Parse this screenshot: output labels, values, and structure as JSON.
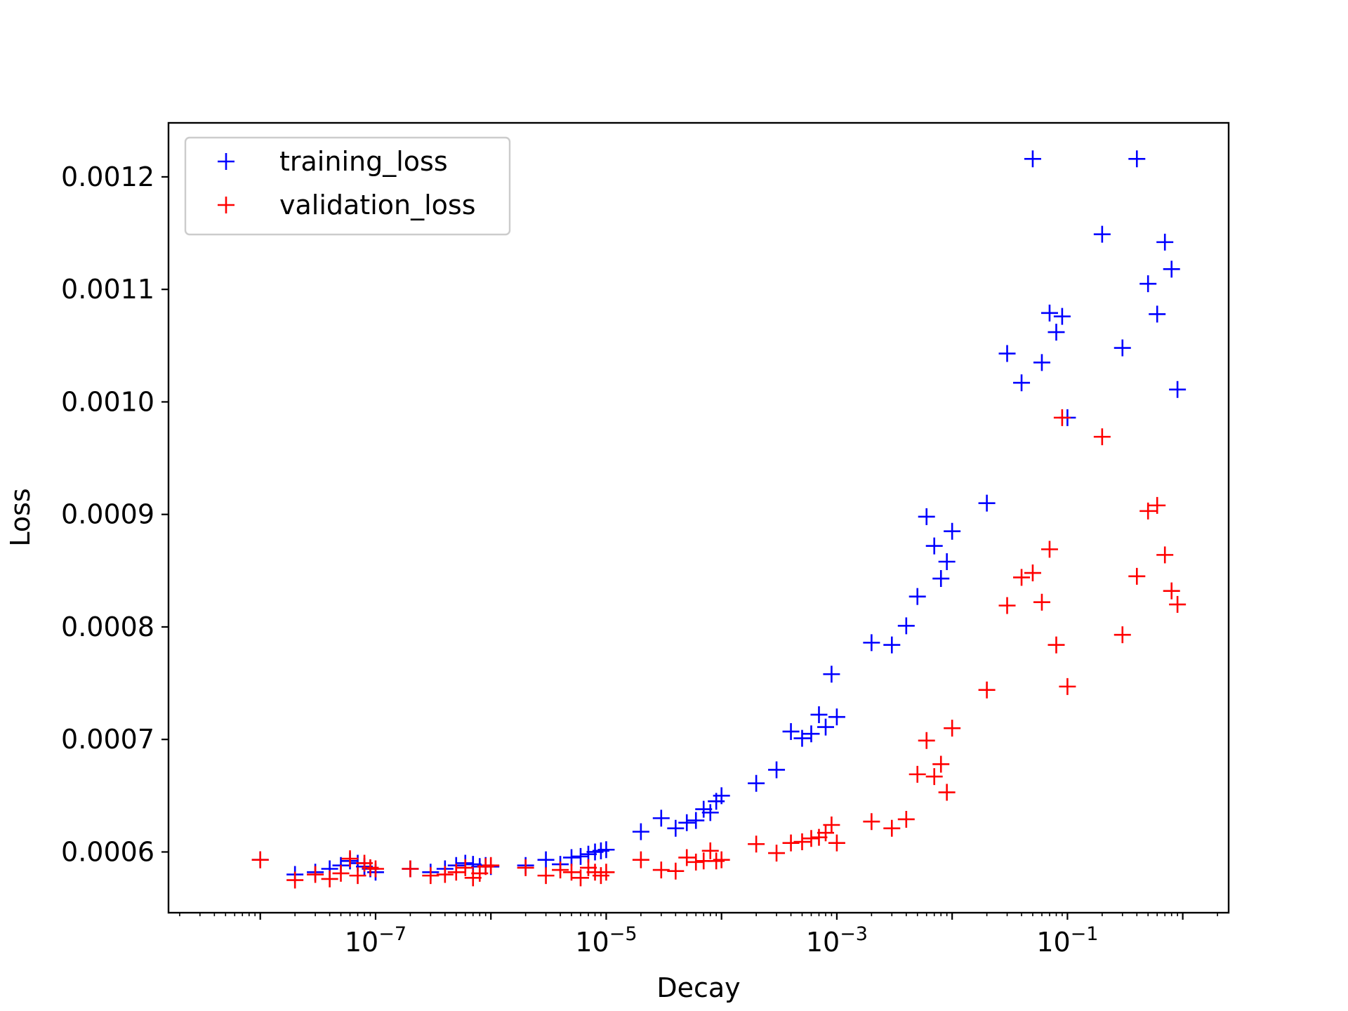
{
  "chart_data": {
    "type": "scatter",
    "title": "",
    "xlabel": "Decay",
    "ylabel": "Loss",
    "xscale": "log",
    "xlim": [
      1.6e-09,
      2.5
    ],
    "ylim": [
      0.000546,
      0.001248
    ],
    "grid": false,
    "legend": "top-left",
    "x_ticks": [
      {
        "value": 1e-07,
        "base": "10",
        "exp": "−7"
      },
      {
        "value": 1e-05,
        "base": "10",
        "exp": "−5"
      },
      {
        "value": 0.001,
        "base": "10",
        "exp": "−3"
      },
      {
        "value": 0.1,
        "base": "10",
        "exp": "−1"
      }
    ],
    "y_ticks": [
      {
        "value": 0.0006,
        "label": "0.0006"
      },
      {
        "value": 0.0007,
        "label": "0.0007"
      },
      {
        "value": 0.0008,
        "label": "0.0008"
      },
      {
        "value": 0.0009,
        "label": "0.0009"
      },
      {
        "value": 0.001,
        "label": "0.0010"
      },
      {
        "value": 0.0011,
        "label": "0.0011"
      },
      {
        "value": 0.0012,
        "label": "0.0012"
      }
    ],
    "series": [
      {
        "name": "training_loss",
        "color": "#0000ff",
        "marker": "plus",
        "points": [
          [
            1e-08,
            0.000593
          ],
          [
            2e-08,
            0.00058
          ],
          [
            3e-08,
            0.000582
          ],
          [
            4e-08,
            0.000585
          ],
          [
            5e-08,
            0.000588
          ],
          [
            6e-08,
            0.000592
          ],
          [
            7e-08,
            0.00059
          ],
          [
            8e-08,
            0.000587
          ],
          [
            9e-08,
            0.000585
          ],
          [
            1e-07,
            0.000582
          ],
          [
            2e-07,
            0.000585
          ],
          [
            3e-07,
            0.000582
          ],
          [
            4e-07,
            0.000585
          ],
          [
            5e-07,
            0.000588
          ],
          [
            6e-07,
            0.00059
          ],
          [
            7e-07,
            0.000589
          ],
          [
            8e-07,
            0.000587
          ],
          [
            9e-07,
            0.000588
          ],
          [
            1e-06,
            0.000587
          ],
          [
            2e-06,
            0.000588
          ],
          [
            3e-06,
            0.000593
          ],
          [
            4e-06,
            0.000589
          ],
          [
            5e-06,
            0.000595
          ],
          [
            6e-06,
            0.000596
          ],
          [
            7e-06,
            0.000598
          ],
          [
            8e-06,
            0.0006
          ],
          [
            9e-06,
            0.000601
          ],
          [
            1e-05,
            0.000602
          ],
          [
            2e-05,
            0.000618
          ],
          [
            3e-05,
            0.00063
          ],
          [
            4e-05,
            0.000621
          ],
          [
            5e-05,
            0.000626
          ],
          [
            6e-05,
            0.000628
          ],
          [
            7e-05,
            0.000638
          ],
          [
            8e-05,
            0.000635
          ],
          [
            9e-05,
            0.000645
          ],
          [
            0.0001,
            0.00065
          ],
          [
            0.0002,
            0.000661
          ],
          [
            0.0003,
            0.000673
          ],
          [
            0.0004,
            0.000707
          ],
          [
            0.0005,
            0.000701
          ],
          [
            0.0006,
            0.000705
          ],
          [
            0.0007,
            0.000722
          ],
          [
            0.0008,
            0.000711
          ],
          [
            0.0009,
            0.000758
          ],
          [
            0.001,
            0.00072
          ],
          [
            0.002,
            0.000786
          ],
          [
            0.003,
            0.000784
          ],
          [
            0.004,
            0.000801
          ],
          [
            0.005,
            0.000827
          ],
          [
            0.006,
            0.000898
          ],
          [
            0.007,
            0.000872
          ],
          [
            0.008,
            0.000843
          ],
          [
            0.009,
            0.000858
          ],
          [
            0.01,
            0.000885
          ],
          [
            0.02,
            0.00091
          ],
          [
            0.03,
            0.001043
          ],
          [
            0.04,
            0.001017
          ],
          [
            0.05,
            0.001216
          ],
          [
            0.06,
            0.001035
          ],
          [
            0.07,
            0.001079
          ],
          [
            0.08,
            0.001062
          ],
          [
            0.09,
            0.001076
          ],
          [
            0.1,
            0.000986
          ],
          [
            0.2,
            0.001149
          ],
          [
            0.3,
            0.001048
          ],
          [
            0.4,
            0.001216
          ],
          [
            0.5,
            0.001105
          ],
          [
            0.6,
            0.001078
          ],
          [
            0.7,
            0.001142
          ],
          [
            0.8,
            0.001118
          ],
          [
            0.9,
            0.001011
          ]
        ]
      },
      {
        "name": "validation_loss",
        "color": "#ff0000",
        "marker": "plus",
        "points": [
          [
            1e-08,
            0.000593
          ],
          [
            2e-08,
            0.000575
          ],
          [
            3e-08,
            0.00058
          ],
          [
            4e-08,
            0.000576
          ],
          [
            5e-08,
            0.000581
          ],
          [
            6e-08,
            0.000594
          ],
          [
            7e-08,
            0.000579
          ],
          [
            8e-08,
            0.00059
          ],
          [
            9e-08,
            0.000586
          ],
          [
            1e-07,
            0.000585
          ],
          [
            2e-07,
            0.000585
          ],
          [
            3e-07,
            0.000579
          ],
          [
            4e-07,
            0.00058
          ],
          [
            5e-07,
            0.000582
          ],
          [
            6e-07,
            0.000586
          ],
          [
            7e-07,
            0.000577
          ],
          [
            8e-07,
            0.000581
          ],
          [
            9e-07,
            0.000587
          ],
          [
            1e-06,
            0.000588
          ],
          [
            2e-06,
            0.000586
          ],
          [
            3e-06,
            0.000579
          ],
          [
            4e-06,
            0.000584
          ],
          [
            5e-06,
            0.000582
          ],
          [
            6e-06,
            0.000577
          ],
          [
            7e-06,
            0.000586
          ],
          [
            8e-06,
            0.000582
          ],
          [
            9e-06,
            0.000579
          ],
          [
            1e-05,
            0.000582
          ],
          [
            2e-05,
            0.000593
          ],
          [
            3e-05,
            0.000584
          ],
          [
            4e-05,
            0.000583
          ],
          [
            5e-05,
            0.000595
          ],
          [
            6e-05,
            0.000591
          ],
          [
            7e-05,
            0.000592
          ],
          [
            8e-05,
            0.000601
          ],
          [
            9e-05,
            0.000592
          ],
          [
            0.0001,
            0.000593
          ],
          [
            0.0002,
            0.000607
          ],
          [
            0.0003,
            0.000599
          ],
          [
            0.0004,
            0.000608
          ],
          [
            0.0005,
            0.000609
          ],
          [
            0.0006,
            0.000612
          ],
          [
            0.0007,
            0.000613
          ],
          [
            0.0008,
            0.000617
          ],
          [
            0.0009,
            0.000624
          ],
          [
            0.001,
            0.000608
          ],
          [
            0.002,
            0.000627
          ],
          [
            0.003,
            0.000621
          ],
          [
            0.004,
            0.000629
          ],
          [
            0.005,
            0.000669
          ],
          [
            0.006,
            0.000699
          ],
          [
            0.007,
            0.000667
          ],
          [
            0.008,
            0.000678
          ],
          [
            0.009,
            0.000653
          ],
          [
            0.01,
            0.00071
          ],
          [
            0.02,
            0.000744
          ],
          [
            0.03,
            0.000819
          ],
          [
            0.04,
            0.000844
          ],
          [
            0.05,
            0.000848
          ],
          [
            0.06,
            0.000822
          ],
          [
            0.07,
            0.000869
          ],
          [
            0.08,
            0.000784
          ],
          [
            0.09,
            0.000986
          ],
          [
            0.1,
            0.000747
          ],
          [
            0.2,
            0.000969
          ],
          [
            0.3,
            0.000793
          ],
          [
            0.4,
            0.000845
          ],
          [
            0.5,
            0.000903
          ],
          [
            0.6,
            0.000908
          ],
          [
            0.7,
            0.000864
          ],
          [
            0.8,
            0.000832
          ],
          [
            0.9,
            0.00082
          ]
        ]
      }
    ]
  }
}
